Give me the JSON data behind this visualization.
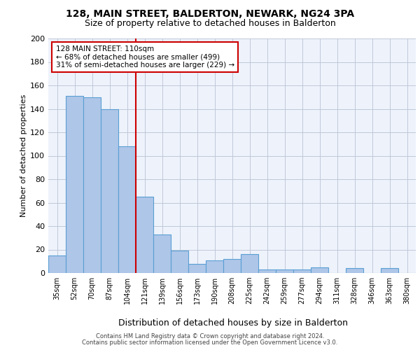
{
  "title": "128, MAIN STREET, BALDERTON, NEWARK, NG24 3PA",
  "subtitle": "Size of property relative to detached houses in Balderton",
  "xlabel": "Distribution of detached houses by size in Balderton",
  "ylabel": "Number of detached properties",
  "categories": [
    "35sqm",
    "52sqm",
    "70sqm",
    "87sqm",
    "104sqm",
    "121sqm",
    "139sqm",
    "156sqm",
    "173sqm",
    "190sqm",
    "208sqm",
    "225sqm",
    "242sqm",
    "259sqm",
    "277sqm",
    "294sqm",
    "311sqm",
    "328sqm",
    "346sqm",
    "363sqm",
    "380sqm"
  ],
  "values": [
    15,
    151,
    150,
    140,
    108,
    65,
    33,
    19,
    8,
    11,
    12,
    16,
    3,
    3,
    3,
    5,
    0,
    4,
    0,
    4,
    0
  ],
  "bar_color": "#aec6e8",
  "bar_edge_color": "#5a9fd4",
  "background_color": "#eef2fb",
  "annotation_text": "128 MAIN STREET: 110sqm\n← 68% of detached houses are smaller (499)\n31% of semi-detached houses are larger (229) →",
  "vline_x": 4.5,
  "annotation_box_color": "#ffffff",
  "annotation_box_edge": "#cc0000",
  "vline_color": "#cc0000",
  "ylim": [
    0,
    200
  ],
  "yticks": [
    0,
    20,
    40,
    60,
    80,
    100,
    120,
    140,
    160,
    180,
    200
  ],
  "footer1": "Contains HM Land Registry data © Crown copyright and database right 2024.",
  "footer2": "Contains public sector information licensed under the Open Government Licence v3.0.",
  "title_fontsize": 10,
  "subtitle_fontsize": 9,
  "ylabel_fontsize": 8,
  "xlabel_fontsize": 9,
  "tick_fontsize": 7,
  "annotation_fontsize": 7.5,
  "footer_fontsize": 6
}
